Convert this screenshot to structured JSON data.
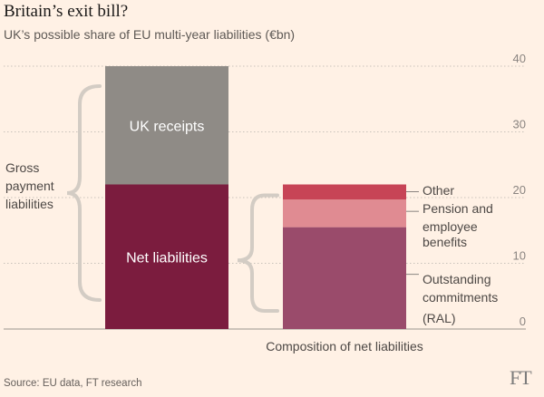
{
  "chart_data": {
    "type": "bar",
    "title": "Britain’s exit bill?",
    "subtitle": "UK’s possible share of EU multi-year liabilities (€bn)",
    "source": "Source: EU data, FT research",
    "logo": "FT",
    "ylim": [
      0,
      40
    ],
    "yticks": [
      0,
      10,
      20,
      30,
      40
    ],
    "grid": true,
    "bars": [
      {
        "name": "gross",
        "segments": [
          {
            "label": "Net liabilities",
            "value": 22,
            "color": "#7b1c3e"
          },
          {
            "label": "UK receipts",
            "value": 18,
            "color": "#8f8b86"
          }
        ],
        "brace_label": [
          "Gross",
          "payment",
          "liabilities"
        ]
      },
      {
        "name": "composition",
        "xlabel": "Composition of net liabilities",
        "segments": [
          {
            "label": "Outstanding commitments (RAL)",
            "lines": [
              "Outstanding",
              "commitments",
              "(RAL)"
            ],
            "value": 15.5,
            "color": "#9a4b6b"
          },
          {
            "label": "Pension and employee benefits",
            "lines": [
              "Pension and",
              "employee",
              "benefits"
            ],
            "value": 4.2,
            "color": "#e08b92"
          },
          {
            "label": "Other",
            "lines": [
              "Other"
            ],
            "value": 2.3,
            "color": "#c74456"
          }
        ]
      }
    ]
  }
}
